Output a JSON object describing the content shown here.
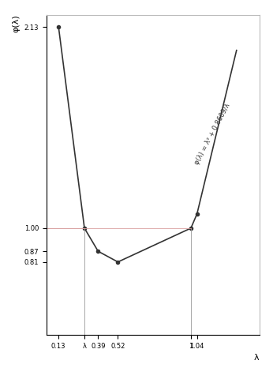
{
  "chart_data": {
    "type": "line",
    "x_label": "λ",
    "y_label": "φ(λ)",
    "annotation": "φ(λ) = λ² + 0.8609/λ",
    "x": [
      0.13,
      0.3,
      0.39,
      0.52,
      1.0,
      1.04,
      1.3
    ],
    "values": [
      2.13,
      1.0,
      0.87,
      0.81,
      1.0,
      1.08,
      2.0
    ],
    "guides_x": [
      0.3,
      1.0
    ],
    "color": "#333333",
    "marker": "o",
    "line_style": "solid",
    "xlim": [
      0.05,
      1.45
    ],
    "ylim": [
      0.4,
      2.2
    ],
    "xticks": [
      0.13,
      {
        "value": 0.3,
        "label": "λ"
      },
      0.39,
      0.52,
      {
        "value": 1.0,
        "label": "1"
      },
      1.04
    ],
    "yticks": [
      0.81,
      0.87,
      {
        "value": 1.0,
        "label": "1.00"
      },
      2.13
    ],
    "grid": false
  }
}
